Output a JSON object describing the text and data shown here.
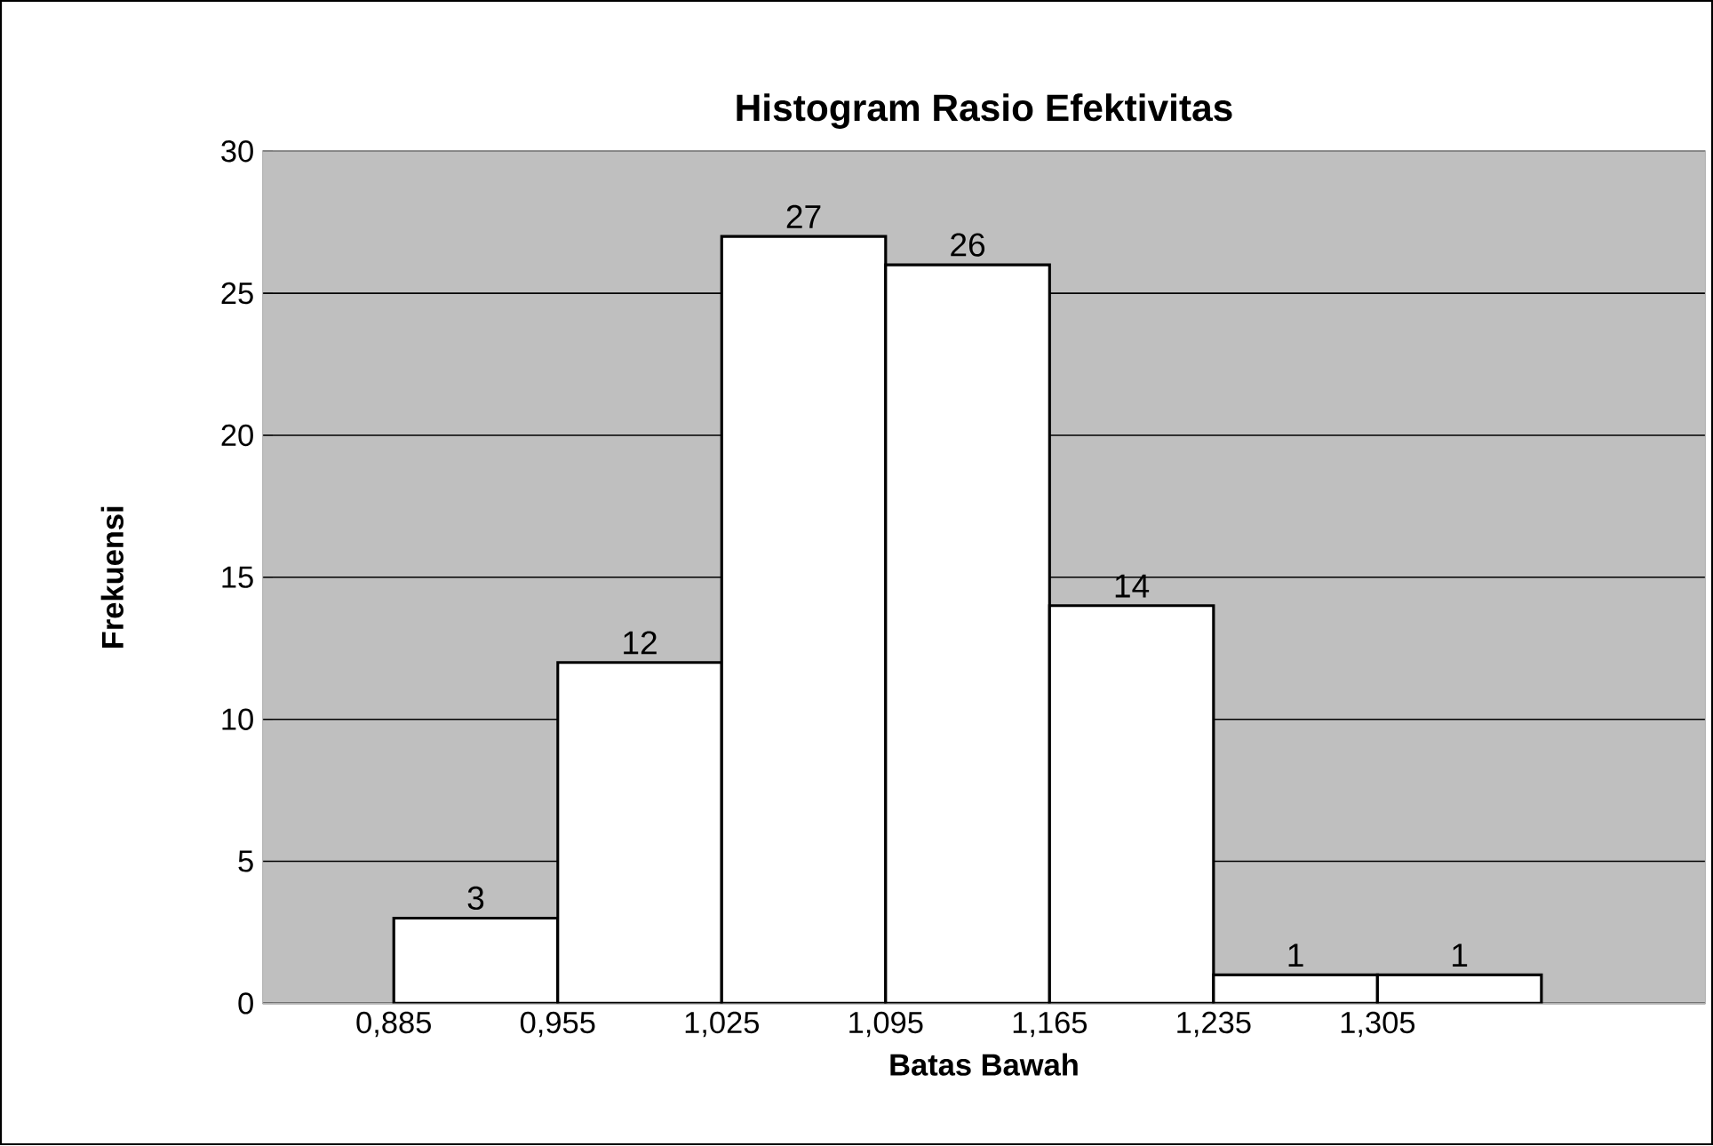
{
  "chart_data": {
    "type": "histogram",
    "title": "Histogram Rasio Efektivitas",
    "xlabel": "Batas Bawah",
    "ylabel": "Frekuensi",
    "bins": [
      0.885,
      0.955,
      1.025,
      1.095,
      1.165,
      1.235,
      1.305,
      1.375
    ],
    "values": [
      3,
      12,
      27,
      26,
      14,
      1,
      1
    ],
    "color": "#ffffff",
    "xlim": [
      0.829,
      1.445
    ],
    "ylim": [
      0,
      30
    ],
    "xticks": [
      {
        "value": 0.885,
        "label": "0,885"
      },
      {
        "value": 0.955,
        "label": "0,955"
      },
      {
        "value": 1.025,
        "label": "1,025"
      },
      {
        "value": 1.095,
        "label": "1,095"
      },
      {
        "value": 1.165,
        "label": "1,165"
      },
      {
        "value": 1.235,
        "label": "1,235"
      },
      {
        "value": 1.305,
        "label": "1,305"
      }
    ],
    "yticks": [
      0,
      5,
      10,
      15,
      20,
      25,
      30
    ],
    "grid": "y",
    "data_labels": true
  }
}
